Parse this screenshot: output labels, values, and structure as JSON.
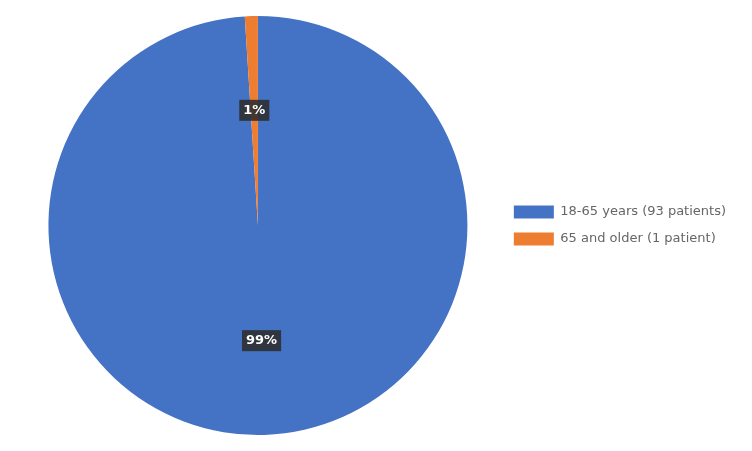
{
  "chart_data": {
    "type": "pie",
    "categories": [
      "18-65 years (93 patients)",
      "65 and older (1 patient)"
    ],
    "values": [
      99,
      1
    ],
    "value_labels": [
      "99%",
      "1%"
    ],
    "colors": [
      "#4472C4",
      "#ED7D31"
    ],
    "data_labels": true,
    "legend": "right"
  }
}
